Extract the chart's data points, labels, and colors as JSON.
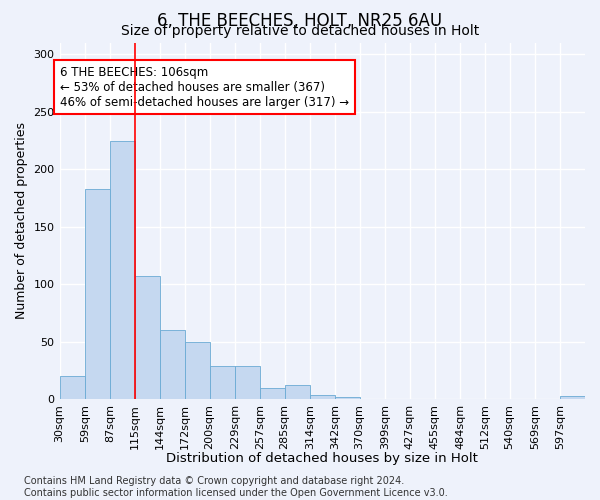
{
  "title1": "6, THE BEECHES, HOLT, NR25 6AU",
  "title2": "Size of property relative to detached houses in Holt",
  "xlabel": "Distribution of detached houses by size in Holt",
  "ylabel": "Number of detached properties",
  "footnote": "Contains HM Land Registry data © Crown copyright and database right 2024.\nContains public sector information licensed under the Open Government Licence v3.0.",
  "bar_labels": [
    "30sqm",
    "59sqm",
    "87sqm",
    "115sqm",
    "144sqm",
    "172sqm",
    "200sqm",
    "229sqm",
    "257sqm",
    "285sqm",
    "314sqm",
    "342sqm",
    "370sqm",
    "399sqm",
    "427sqm",
    "455sqm",
    "484sqm",
    "512sqm",
    "540sqm",
    "569sqm",
    "597sqm"
  ],
  "bar_values": [
    20,
    183,
    224,
    107,
    60,
    50,
    29,
    29,
    10,
    12,
    4,
    2,
    0,
    0,
    0,
    0,
    0,
    0,
    0,
    0,
    3
  ],
  "bar_color": "#c5d8f0",
  "bar_edge_color": "#6aaad4",
  "annotation_text": "6 THE BEECHES: 106sqm\n← 53% of detached houses are smaller (367)\n46% of semi-detached houses are larger (317) →",
  "annotation_box_color": "white",
  "annotation_box_edge_color": "red",
  "vline_color": "red",
  "ylim": [
    0,
    310
  ],
  "yticks": [
    0,
    50,
    100,
    150,
    200,
    250,
    300
  ],
  "background_color": "#eef2fb",
  "grid_color": "white",
  "title1_fontsize": 12,
  "title2_fontsize": 10,
  "xlabel_fontsize": 9.5,
  "ylabel_fontsize": 9,
  "annotation_fontsize": 8.5,
  "footnote_fontsize": 7,
  "tick_fontsize": 8
}
